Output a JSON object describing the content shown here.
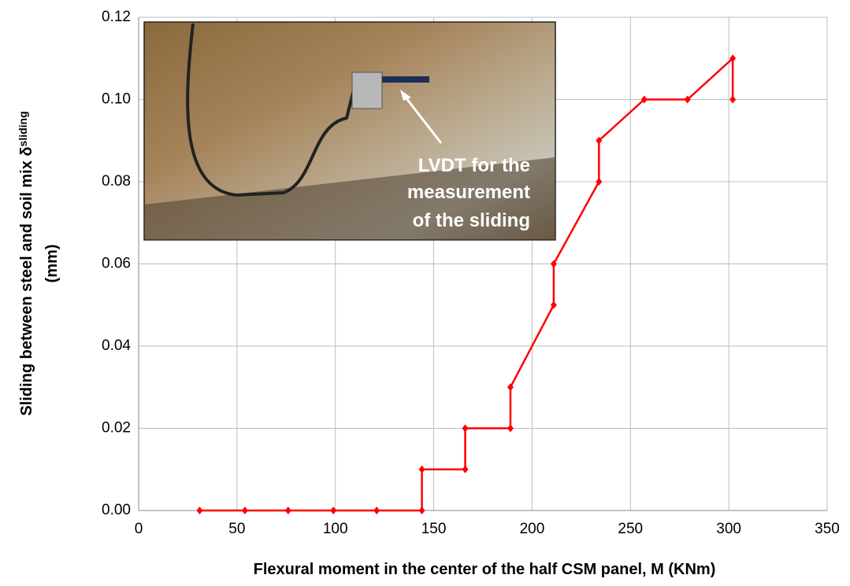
{
  "chart_data": {
    "type": "line",
    "xlabel": "Flexural moment in the center of the half CSM panel, M (KNm)",
    "ylabel": {
      "main": "Sliding between steel and soil mix  δ",
      "subscript": "sliding",
      "unit": "(mm)"
    },
    "annotation": [
      "LVDT for the",
      "measurement",
      "of the sliding"
    ],
    "xlim": [
      0,
      350
    ],
    "xticks": [
      0,
      50,
      100,
      150,
      200,
      250,
      300,
      350
    ],
    "ylim": [
      0,
      0.12
    ],
    "yticks": [
      {
        "value": 0,
        "label": "0.00"
      },
      {
        "value": 0.02,
        "label": "0.02"
      },
      {
        "value": 0.04,
        "label": "0.04"
      },
      {
        "value": 0.06,
        "label": "0.06"
      },
      {
        "value": 0.08,
        "label": "0.08"
      },
      {
        "value": 0.1,
        "label": "0.10"
      },
      {
        "value": 0.12,
        "label": "0.12"
      }
    ],
    "grid": true,
    "series": [
      {
        "color": "#ff0000",
        "x": [
          31,
          54,
          76,
          99,
          121,
          144,
          144,
          166,
          166,
          189,
          189,
          211,
          211,
          234,
          234,
          257,
          279,
          302,
          302
        ],
        "values": [
          0,
          0,
          0,
          0,
          0,
          0,
          0.01,
          0.01,
          0.02,
          0.02,
          0.03,
          0.05,
          0.06,
          0.08,
          0.09,
          0.1,
          0.1,
          0.11,
          0.1
        ]
      }
    ]
  }
}
